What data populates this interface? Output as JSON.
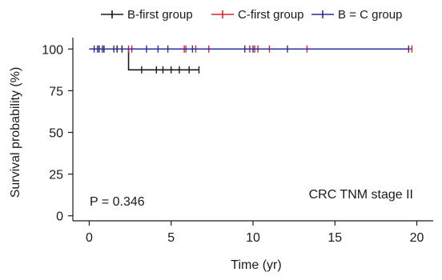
{
  "chart_data": {
    "type": "line",
    "subtype": "kaplan-meier",
    "xlabel": "Time (yr)",
    "ylabel": "Survival probability (%)",
    "xlim": [
      -1,
      21
    ],
    "ylim": [
      -3,
      103
    ],
    "xticks": [
      0,
      5,
      10,
      15,
      20
    ],
    "yticks": [
      0,
      25,
      50,
      75,
      100
    ],
    "grid": false,
    "legend_position": "top",
    "annotations": {
      "p_value": "P = 0.346",
      "stage": "CRC TNM stage II"
    },
    "series": [
      {
        "name": "B-first group",
        "color": "#1a1a1a",
        "steps": [
          {
            "x": 0.0,
            "y": 100
          },
          {
            "x": 2.4,
            "y": 100
          },
          {
            "x": 2.4,
            "y": 87.5
          },
          {
            "x": 6.7,
            "y": 87.5
          }
        ],
        "censored": [
          {
            "x": 0.6,
            "y": 100
          },
          {
            "x": 0.9,
            "y": 100
          },
          {
            "x": 1.7,
            "y": 100
          },
          {
            "x": 2.0,
            "y": 100
          },
          {
            "x": 3.2,
            "y": 87.5
          },
          {
            "x": 4.1,
            "y": 87.5
          },
          {
            "x": 4.5,
            "y": 87.5
          },
          {
            "x": 5.0,
            "y": 87.5
          },
          {
            "x": 5.5,
            "y": 87.5
          },
          {
            "x": 6.1,
            "y": 87.5
          },
          {
            "x": 6.7,
            "y": 87.5
          }
        ]
      },
      {
        "name": "C-first group",
        "color": "#e0202a",
        "steps": [
          {
            "x": 0.0,
            "y": 100
          },
          {
            "x": 19.7,
            "y": 100
          }
        ],
        "censored": [
          {
            "x": 2.4,
            "y": 100
          },
          {
            "x": 2.6,
            "y": 100
          },
          {
            "x": 5.8,
            "y": 100
          },
          {
            "x": 5.9,
            "y": 100
          },
          {
            "x": 6.5,
            "y": 100
          },
          {
            "x": 7.3,
            "y": 100
          },
          {
            "x": 9.8,
            "y": 100
          },
          {
            "x": 10.1,
            "y": 100
          },
          {
            "x": 10.3,
            "y": 100
          },
          {
            "x": 11.0,
            "y": 100
          },
          {
            "x": 13.3,
            "y": 100
          },
          {
            "x": 19.7,
            "y": 100
          }
        ]
      },
      {
        "name": "B = C group",
        "color": "#2a2f9a",
        "steps": [
          {
            "x": 0.0,
            "y": 100
          },
          {
            "x": 19.5,
            "y": 100
          }
        ],
        "censored": [
          {
            "x": 0.3,
            "y": 100
          },
          {
            "x": 0.5,
            "y": 100
          },
          {
            "x": 0.8,
            "y": 100
          },
          {
            "x": 1.5,
            "y": 100
          },
          {
            "x": 3.5,
            "y": 100
          },
          {
            "x": 4.2,
            "y": 100
          },
          {
            "x": 4.8,
            "y": 100
          },
          {
            "x": 6.3,
            "y": 100
          },
          {
            "x": 9.5,
            "y": 100
          },
          {
            "x": 10.0,
            "y": 100
          },
          {
            "x": 12.1,
            "y": 100
          },
          {
            "x": 19.5,
            "y": 100
          }
        ]
      }
    ]
  }
}
